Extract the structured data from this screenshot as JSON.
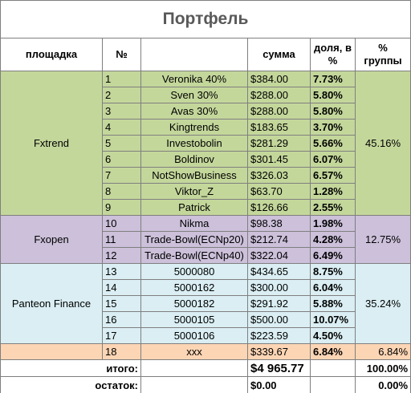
{
  "title": "Портфель",
  "headers": [
    "площадка",
    "№",
    "",
    "сумма",
    "доля, в %",
    "% группы"
  ],
  "groups": [
    {
      "name": "Fxtrend",
      "pct": "45.16%",
      "color": "#c4d79b",
      "rows": [
        [
          "1",
          "Veronika 40%",
          "$384.00",
          "7.73%"
        ],
        [
          "2",
          "Sven 30%",
          "$288.00",
          "5.80%"
        ],
        [
          "3",
          "Avas 30%",
          "$288.00",
          "5.80%"
        ],
        [
          "4",
          "Kingtrends",
          "$183.65",
          "3.70%"
        ],
        [
          "5",
          "Investobolin",
          "$281.29",
          "5.66%"
        ],
        [
          "6",
          "Boldinov",
          "$301.45",
          "6.07%"
        ],
        [
          "7",
          "NotShowBusiness",
          "$326.03",
          "6.57%"
        ],
        [
          "8",
          "Viktor_Z",
          "$63.70",
          "1.28%"
        ],
        [
          "9",
          "Patrick",
          "$126.66",
          "2.55%"
        ]
      ]
    },
    {
      "name": "Fxopen",
      "pct": "12.75%",
      "color": "#ccc0da",
      "rows": [
        [
          "10",
          "Nikma",
          "$98.38",
          "1.98%"
        ],
        [
          "11",
          "Trade-Bowl(ECNp20)",
          "$212.74",
          "4.28%"
        ],
        [
          "12",
          "Trade-Bowl(ECNp40)",
          "$322.04",
          "6.49%"
        ]
      ]
    },
    {
      "name": "Panteon Finance",
      "pct": "35.24%",
      "color": "#daeef3",
      "rows": [
        [
          "13",
          "5000080",
          "$434.65",
          "8.75%"
        ],
        [
          "14",
          "5000162",
          "$300.00",
          "6.04%"
        ],
        [
          "15",
          "5000182",
          "$291.92",
          "5.88%"
        ],
        [
          "16",
          "5000105",
          "$500.00",
          "10.07%"
        ],
        [
          "17",
          "5000106",
          "$223.59",
          "4.50%"
        ]
      ]
    },
    {
      "name": "",
      "pct": "6.84%",
      "color": "#fcd5b4",
      "rows": [
        [
          "18",
          "xxx",
          "$339.67",
          "6.84%"
        ]
      ]
    }
  ],
  "totals": [
    {
      "label": "итого:",
      "sum": "$4 965.77",
      "pct": "100.00%"
    },
    {
      "label": "остаток:",
      "sum": "$0.00",
      "pct": "0.00%"
    }
  ]
}
